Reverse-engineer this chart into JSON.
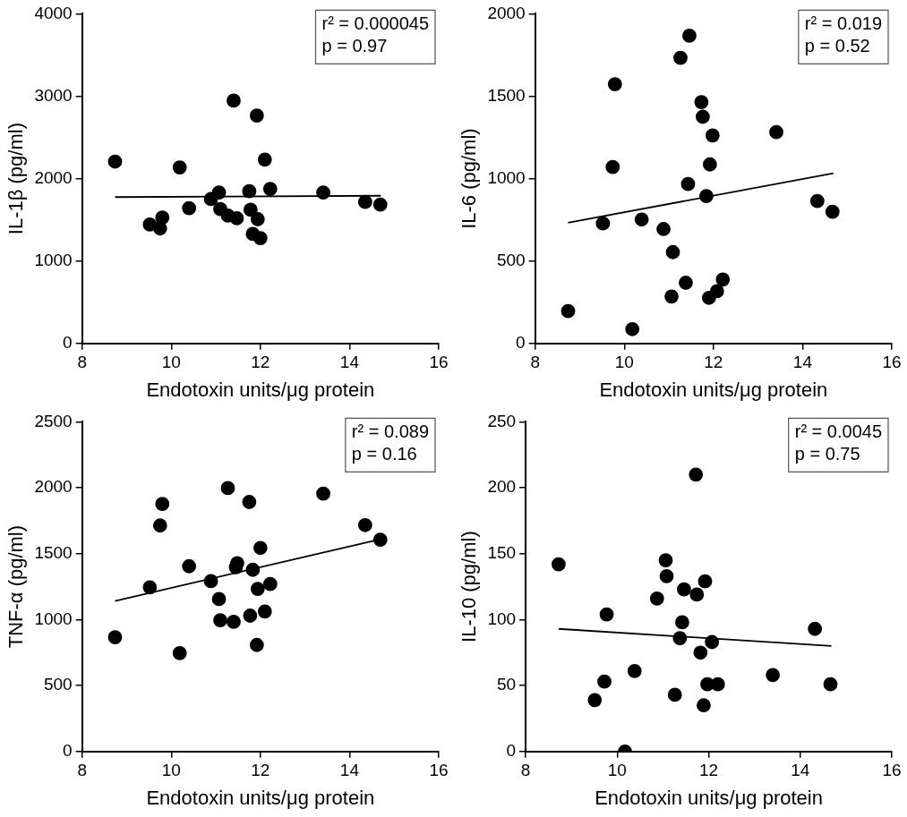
{
  "chart_data": [
    {
      "type": "scatter",
      "xlabel": "Endotoxin units/μg protein",
      "ylabel": "IL-1β (pg/ml)",
      "xlim": [
        8,
        16
      ],
      "xticks": [
        8,
        10,
        12,
        14,
        16
      ],
      "ylim": [
        0,
        4000
      ],
      "yticks": [
        0,
        1000,
        2000,
        3000,
        4000
      ],
      "grid": false,
      "legend": false,
      "marker": "circle",
      "annotations": [
        "r² = 0.000045",
        "p = 0.97"
      ],
      "x": [
        8.74,
        9.52,
        9.75,
        9.8,
        10.19,
        10.4,
        10.89,
        11.07,
        11.1,
        11.27,
        11.4,
        11.47,
        11.75,
        11.78,
        11.83,
        11.92,
        11.94,
        12.0,
        12.1,
        12.22,
        13.41,
        14.35,
        14.69
      ],
      "series": [
        {
          "type": "scatter",
          "color": "#000000",
          "values": [
            2207,
            1444,
            1396,
            1527,
            2136,
            1642,
            1752,
            1831,
            1630,
            1551,
            2947,
            1519,
            1847,
            1622,
            1329,
            2765,
            1507,
            1278,
            2231,
            1875,
            1831,
            1717,
            1685
          ]
        },
        {
          "type": "line",
          "color": "#000000",
          "marker": "none",
          "x": [
            8.74,
            14.7
          ],
          "values": [
            1776,
            1792
          ]
        }
      ]
    },
    {
      "type": "scatter",
      "xlabel": "Endotoxin units/μg protein",
      "ylabel": "IL-6 (pg/ml)",
      "xlim": [
        8,
        16
      ],
      "xticks": [
        8,
        10,
        12,
        14,
        16
      ],
      "ylim": [
        0,
        2000
      ],
      "yticks": [
        0,
        500,
        1000,
        1500,
        2000
      ],
      "grid": false,
      "legend": false,
      "marker": "circle",
      "annotations": [
        "r² = 0.019",
        "p = 0.52"
      ],
      "x": [
        8.74,
        9.52,
        9.74,
        9.79,
        10.18,
        10.39,
        10.88,
        11.06,
        11.09,
        11.26,
        11.38,
        11.43,
        11.46,
        11.73,
        11.76,
        11.84,
        11.9,
        11.92,
        11.98,
        12.08,
        12.21,
        13.41,
        14.33,
        14.67
      ],
      "series": [
        {
          "type": "scatter",
          "color": "#000000",
          "values": [
            196,
            728,
            1070,
            1573,
            87,
            752,
            694,
            285,
            554,
            1733,
            368,
            967,
            1867,
            1464,
            1375,
            894,
            277,
            1086,
            1262,
            317,
            388,
            1282,
            864,
            799
          ]
        },
        {
          "type": "line",
          "color": "#000000",
          "marker": "none",
          "x": [
            8.74,
            14.69
          ],
          "values": [
            732,
            1033
          ]
        }
      ]
    },
    {
      "type": "scatter",
      "xlabel": "Endotoxin units/μg protein",
      "ylabel": "TNF-α (pg/ml)",
      "xlim": [
        8,
        16
      ],
      "xticks": [
        8,
        10,
        12,
        14,
        16
      ],
      "ylim": [
        0,
        2500
      ],
      "yticks": [
        0,
        500,
        1000,
        1500,
        2000,
        2500
      ],
      "grid": false,
      "legend": false,
      "marker": "circle",
      "annotations": [
        "r² = 0.089",
        "p = 0.16"
      ],
      "x": [
        8.74,
        9.52,
        9.75,
        9.8,
        10.19,
        10.4,
        10.89,
        11.07,
        11.1,
        11.27,
        11.4,
        11.45,
        11.48,
        11.75,
        11.77,
        11.83,
        11.92,
        11.94,
        12.0,
        12.1,
        12.22,
        13.41,
        14.35,
        14.69
      ],
      "series": [
        {
          "type": "scatter",
          "color": "#000000",
          "values": [
            867,
            1245,
            1714,
            1877,
            746,
            1405,
            1292,
            1156,
            995,
            1998,
            983,
            1398,
            1428,
            1892,
            1030,
            1378,
            808,
            1233,
            1544,
            1062,
            1270,
            1956,
            1717,
            1606
          ]
        },
        {
          "type": "line",
          "color": "#000000",
          "marker": "none",
          "x": [
            8.74,
            14.69
          ],
          "values": [
            1141,
            1610
          ]
        }
      ]
    },
    {
      "type": "scatter",
      "xlabel": "Endotoxin units/μg protein",
      "ylabel": "IL-10 (pg/ml)",
      "xlim": [
        8,
        16
      ],
      "xticks": [
        8,
        10,
        12,
        14,
        16
      ],
      "ylim": [
        0,
        250
      ],
      "yticks": [
        0,
        50,
        100,
        150,
        200,
        250
      ],
      "grid": false,
      "legend": false,
      "marker": "circle",
      "annotations": [
        "r² = 0.0045",
        "p = 0.75"
      ],
      "x": [
        8.72,
        9.51,
        9.72,
        9.77,
        10.17,
        10.38,
        10.87,
        11.06,
        11.08,
        11.26,
        11.37,
        11.42,
        11.46,
        11.72,
        11.74,
        11.82,
        11.89,
        11.92,
        11.97,
        12.07,
        12.2,
        13.4,
        14.32,
        14.66
      ],
      "series": [
        {
          "type": "scatter",
          "color": "#000000",
          "values": [
            142,
            39,
            53,
            104,
            0,
            61,
            116,
            145,
            133,
            43,
            86,
            98,
            123,
            210,
            119,
            75,
            35,
            129,
            51,
            83,
            51,
            58,
            93,
            51
          ]
        },
        {
          "type": "line",
          "color": "#000000",
          "marker": "none",
          "x": [
            8.72,
            14.68
          ],
          "values": [
            93,
            80
          ]
        }
      ]
    }
  ]
}
